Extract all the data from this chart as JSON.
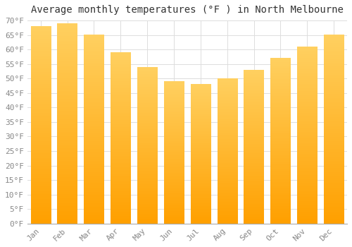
{
  "title": "Average monthly temperatures (°F ) in North Melbourne",
  "months": [
    "Jan",
    "Feb",
    "Mar",
    "Apr",
    "May",
    "Jun",
    "Jul",
    "Aug",
    "Sep",
    "Oct",
    "Nov",
    "Dec"
  ],
  "values": [
    68,
    69,
    65,
    59,
    54,
    49,
    48,
    50,
    53,
    57,
    61,
    65
  ],
  "bar_color_top": "#FFD060",
  "bar_color_bottom": "#FFA000",
  "background_color": "#FFFFFF",
  "grid_color": "#DDDDDD",
  "ylim": [
    0,
    70
  ],
  "ytick_step": 5,
  "title_fontsize": 10,
  "tick_fontsize": 8,
  "tick_color": "#888888",
  "title_color": "#333333"
}
